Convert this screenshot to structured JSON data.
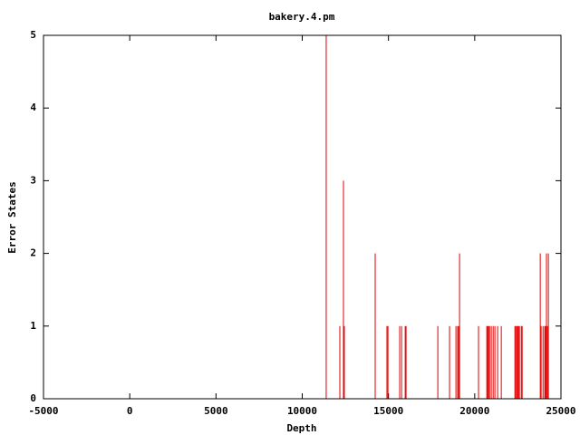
{
  "chart_data": {
    "type": "impulse",
    "title": "bakery.4.pm",
    "x_label": "Depth",
    "y_label": "Error States",
    "color": "#e00000",
    "x": [
      11390,
      12180,
      12390,
      12440,
      14230,
      14910,
      14970,
      15650,
      15760,
      15970,
      16020,
      17860,
      18540,
      18910,
      19010,
      19070,
      19120,
      20220,
      20700,
      20750,
      20800,
      20860,
      20960,
      21070,
      21170,
      21330,
      21540,
      22330,
      22380,
      22440,
      22490,
      22540,
      22590,
      22700,
      22750,
      23800,
      23850,
      23960,
      24060,
      24110,
      24160,
      24220,
      24270
    ],
    "values": [
      5,
      1,
      3,
      1,
      2,
      1,
      1,
      1,
      1,
      1,
      1,
      1,
      1,
      1,
      1,
      1,
      2,
      1,
      1,
      1,
      1,
      1,
      1,
      1,
      1,
      1,
      1,
      1,
      1,
      1,
      1,
      1,
      1,
      1,
      1,
      2,
      1,
      1,
      1,
      1,
      2,
      1,
      2
    ],
    "xlim": [
      -5000,
      25000
    ],
    "xticks": [
      -5000,
      0,
      5000,
      10000,
      15000,
      20000,
      25000
    ],
    "ylim": [
      0,
      5
    ],
    "yticks": [
      0,
      1,
      2,
      3,
      4,
      5
    ]
  }
}
